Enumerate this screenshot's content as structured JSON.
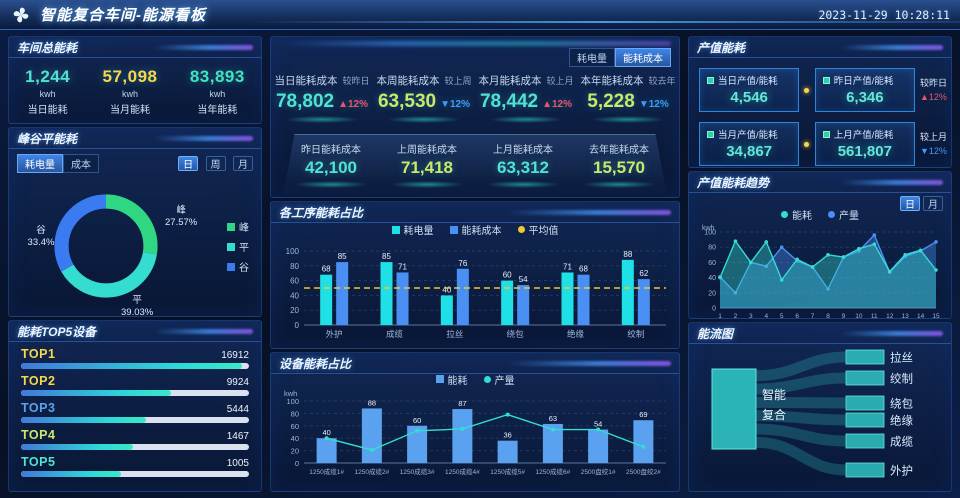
{
  "header": {
    "logo": "pinwheel-logo",
    "title": "智能复合车间-能源看板",
    "timestamp": "2023-11-29  10:28:11"
  },
  "colors": {
    "accent_cyan": "#4fe3d2",
    "accent_yellow": "#f7d84a",
    "accent_green_yellow": "#c8e96a",
    "up_red": "#e8556a",
    "down_blue": "#3d9bff"
  },
  "workshop_total": {
    "title": "车间总能耗",
    "stats": [
      {
        "value": "1,244",
        "unit": "kwh",
        "label": "当日能耗",
        "color": "#4fe3d2"
      },
      {
        "value": "57,098",
        "unit": "kwh",
        "label": "当月能耗",
        "color": "#f7d84a"
      },
      {
        "value": "83,893",
        "unit": "kwh",
        "label": "当年能耗",
        "color": "#3fe3c0"
      }
    ]
  },
  "peak_valley": {
    "title": "峰谷平能耗",
    "tabs": [
      {
        "label": "耗电量",
        "active": true
      },
      {
        "label": "成本",
        "active": false
      }
    ],
    "period_buttons": [
      {
        "label": "日",
        "active": true
      },
      {
        "label": "周",
        "active": false
      },
      {
        "label": "月",
        "active": false
      }
    ],
    "callouts": [
      {
        "label": "峰",
        "value": "27.57%"
      },
      {
        "label": "平",
        "value": "39.03%"
      },
      {
        "label": "谷",
        "value": "33.4%"
      }
    ],
    "legend": [
      "峰",
      "平",
      "谷"
    ]
  },
  "top5": {
    "title": "能耗TOP5设备",
    "items": [
      {
        "label": "TOP1",
        "value": "16912",
        "percent": 97,
        "label_color": "#f7d84a"
      },
      {
        "label": "TOP2",
        "value": "9924",
        "percent": 66,
        "label_color": "#f7d84a"
      },
      {
        "label": "TOP3",
        "value": "5444",
        "percent": 55,
        "label_color": "#5aa2f0"
      },
      {
        "label": "TOP4",
        "value": "1467",
        "percent": 49,
        "label_color": "#c8e96a"
      },
      {
        "label": "TOP5",
        "value": "1005",
        "percent": 44,
        "label_color": "#4fe3d2"
      }
    ]
  },
  "cost_overview": {
    "tabs": [
      {
        "label": "耗电量",
        "active": false
      },
      {
        "label": "能耗成本",
        "active": true
      }
    ],
    "row1": [
      {
        "label": "当日能耗成本",
        "compare_label": "较昨日",
        "value": "78,802",
        "delta_text": "▲12%",
        "delta_color": "#e8556a",
        "value_color": "#4fe3d2"
      },
      {
        "label": "本周能耗成本",
        "compare_label": "较上周",
        "value": "63,530",
        "delta_text": "▼12%",
        "delta_color": "#3d9bff",
        "value_color": "#c8e96a"
      },
      {
        "label": "本月能耗成本",
        "compare_label": "较上月",
        "value": "78,442",
        "delta_text": "▲12%",
        "delta_color": "#e8556a",
        "value_color": "#4fe3d2"
      },
      {
        "label": "本年能耗成本",
        "compare_label": "较去年",
        "value": "5,228",
        "delta_text": "▼12%",
        "delta_color": "#3d9bff",
        "value_color": "#c8e96a"
      }
    ],
    "row2": [
      {
        "label": "昨日能耗成本",
        "value": "42,100",
        "value_color": "#4fe3d2"
      },
      {
        "label": "上周能耗成本",
        "value": "71,418",
        "value_color": "#c8e96a"
      },
      {
        "label": "上月能耗成本",
        "value": "63,312",
        "value_color": "#4fe3d2"
      },
      {
        "label": "去年能耗成本",
        "value": "15,570",
        "value_color": "#c8e96a"
      }
    ]
  },
  "process_panel": {
    "title": "各工序能耗占比",
    "legend": [
      "耗电量",
      "能耗成本",
      "平均值"
    ]
  },
  "device_panel": {
    "title": "设备能耗占比",
    "legend": [
      "能耗",
      "产量"
    ]
  },
  "output_energy": {
    "title": "产值能耗",
    "boxes": [
      {
        "label": "当日产值/能耗",
        "value": "4,546"
      },
      {
        "label": "昨日产值/能耗",
        "value": "6,346"
      },
      {
        "label": "当月产值/能耗",
        "value": "34,867"
      },
      {
        "label": "上月产值/能耗",
        "value": "561,807"
      }
    ],
    "badges": [
      {
        "compare_label": "较昨日",
        "delta_text": "▲12%",
        "delta_color": "#e8556a"
      },
      {
        "compare_label": "较上月",
        "delta_text": "▼12%",
        "delta_color": "#3d9bff"
      }
    ]
  },
  "trend_panel": {
    "title": "产值能耗趋势",
    "legend": [
      "能耗",
      "产量"
    ],
    "period_buttons": [
      {
        "label": "日",
        "active": true
      },
      {
        "label": "月",
        "active": false
      }
    ],
    "ylabel": "kwh"
  },
  "sankey_panel": {
    "title": "能流图"
  },
  "chart_data": [
    {
      "id": "peak_valley_donut",
      "type": "pie",
      "title": "峰谷平能耗",
      "labels": [
        "峰",
        "平",
        "谷"
      ],
      "values": [
        27.57,
        39.03,
        33.4
      ],
      "unit": "%",
      "colors": [
        "#2fd783",
        "#35dcd0",
        "#3b7bf2"
      ],
      "legend_position": "right"
    },
    {
      "id": "process",
      "type": "bar",
      "title": "各工序能耗占比",
      "categories": [
        "外护",
        "成缆",
        "拉丝",
        "绕包",
        "绝缘",
        "绞制"
      ],
      "series": [
        {
          "name": "耗电量",
          "color": "#1ee0e6",
          "values": [
            68,
            85,
            40,
            60,
            71,
            88
          ]
        },
        {
          "name": "能耗成本",
          "color": "#4a90f4",
          "values": [
            85,
            71,
            76,
            54,
            68,
            62
          ]
        }
      ],
      "average_line": {
        "name": "平均值",
        "value": 50,
        "color": "#f0c832"
      },
      "xlabel": "",
      "ylabel": "",
      "ylim": [
        0,
        100
      ],
      "yticks": [
        0,
        20,
        40,
        60,
        80,
        100
      ],
      "grid": true,
      "legend_position": "top"
    },
    {
      "id": "device",
      "type": "bar",
      "title": "设备能耗占比",
      "ylabel": "kwh",
      "categories": [
        "1250成缆1#",
        "1250成缆2#",
        "1250成缆3#",
        "1250成缆4#",
        "1250成缆5#",
        "1250成缆6#",
        "2500盘绞1#",
        "2500盘绞2#"
      ],
      "series": [
        {
          "name": "能耗",
          "type": "bar",
          "color": "#5aa2f0",
          "values": [
            40,
            88,
            60,
            87,
            36,
            63,
            54,
            69
          ]
        },
        {
          "name": "产量",
          "type": "line",
          "color": "#35dcd0",
          "values": [
            40,
            21,
            52,
            55,
            78,
            54,
            54,
            26
          ]
        }
      ],
      "ylim": [
        0,
        100
      ],
      "yticks": [
        0,
        20,
        40,
        60,
        80,
        100
      ],
      "grid": true,
      "legend_position": "top"
    },
    {
      "id": "trend",
      "type": "area",
      "title": "产值能耗趋势",
      "ylabel": "kwh",
      "x": [
        1,
        2,
        3,
        4,
        5,
        6,
        7,
        8,
        9,
        10,
        11,
        12,
        13,
        14,
        15
      ],
      "series": [
        {
          "name": "产量",
          "color": "#4a90f4",
          "values": [
            41,
            20,
            60,
            55,
            80,
            62,
            54,
            25,
            67,
            75,
            96,
            47,
            68,
            75,
            87
          ]
        },
        {
          "name": "能耗",
          "color": "#35dcd0",
          "values": [
            40,
            88,
            60,
            87,
            37,
            64,
            54,
            70,
            67,
            78,
            84,
            48,
            70,
            76,
            50
          ]
        }
      ],
      "ylim": [
        0,
        100
      ],
      "yticks": [
        0,
        20,
        40,
        60,
        80,
        100
      ],
      "grid": true,
      "legend_position": "top"
    },
    {
      "id": "sankey",
      "type": "sankey",
      "title": "能流图",
      "source": "智能复合",
      "source_label_lines": [
        "智能",
        "复合"
      ],
      "targets": [
        "拉丝",
        "绞制",
        "绕包",
        "绝缘",
        "成缆",
        "外护"
      ],
      "node_color": "#2fc4c4",
      "link_color": "rgba(46,190,185,0.28)"
    }
  ]
}
